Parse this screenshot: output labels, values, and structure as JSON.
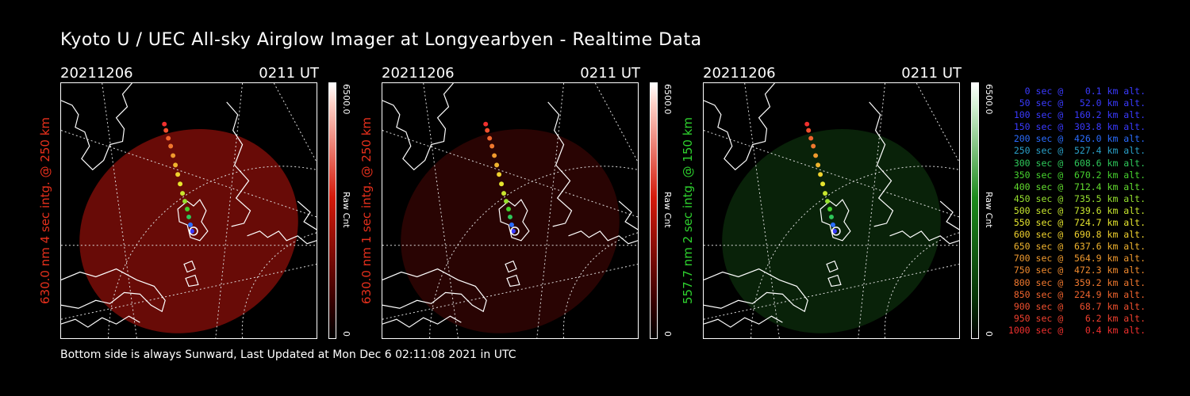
{
  "title": "Kyoto U / UEC All-sky Airglow Imager at Longyearbyen - Realtime Data",
  "footer": "Bottom side is always Sunward, Last Updated at Mon Dec  6 02:11:08 2021 in UTC",
  "panels": [
    {
      "date": "20211206",
      "time": "0211 UT",
      "label": "630.0 nm 4 sec intg. @ 250 km",
      "label_color": "#e8301c",
      "cbar_max": "6500.0",
      "cbar_unit": "Raw Cnt",
      "cbar_min": "0",
      "glow_color": "#7a0d08",
      "glow_opacity": 0.85,
      "cbar_color": "#d4190a"
    },
    {
      "date": "20211206",
      "time": "0211 UT",
      "label": "630.0 nm 1 sec intg. @ 250 km",
      "label_color": "#e8301c",
      "cbar_max": "6500.0",
      "cbar_unit": "Raw Cnt",
      "cbar_min": "0",
      "glow_color": "#3a0604",
      "glow_opacity": 0.7,
      "cbar_color": "#d4190a"
    },
    {
      "date": "20211206",
      "time": "0211 UT",
      "label": "557.7 nm 2 sec intg. @ 150 km",
      "label_color": "#2ed12e",
      "cbar_max": "6500.0",
      "cbar_unit": "Raw Cnt",
      "cbar_min": "0",
      "glow_color": "#0b2a0b",
      "glow_opacity": 0.8,
      "cbar_color": "#1c8a1c"
    }
  ],
  "legend": [
    {
      "text": "   0 sec @    0.1 km alt.",
      "color": "#3a3aff"
    },
    {
      "text": "  50 sec @   52.0 km alt.",
      "color": "#3a3aff"
    },
    {
      "text": " 100 sec @  160.2 km alt.",
      "color": "#3a3aff"
    },
    {
      "text": " 150 sec @  303.8 km alt.",
      "color": "#3a3aff"
    },
    {
      "text": " 200 sec @  426.0 km alt.",
      "color": "#2a6cff"
    },
    {
      "text": " 250 sec @  527.4 km alt.",
      "color": "#2aa0c8"
    },
    {
      "text": " 300 sec @  608.6 km alt.",
      "color": "#2ec85a"
    },
    {
      "text": " 350 sec @  670.2 km alt.",
      "color": "#46d22e"
    },
    {
      "text": " 400 sec @  712.4 km alt.",
      "color": "#62dc2e"
    },
    {
      "text": " 450 sec @  735.5 km alt.",
      "color": "#96e02e"
    },
    {
      "text": " 500 sec @  739.6 km alt.",
      "color": "#c8e62e"
    },
    {
      "text": " 550 sec @  724.7 km alt.",
      "color": "#e6e62e"
    },
    {
      "text": " 600 sec @  690.8 km alt.",
      "color": "#f0d22e"
    },
    {
      "text": " 650 sec @  637.6 km alt.",
      "color": "#f0b42e"
    },
    {
      "text": " 700 sec @  564.9 km alt.",
      "color": "#f09a2e"
    },
    {
      "text": " 750 sec @  472.3 km alt.",
      "color": "#f08a2e"
    },
    {
      "text": " 800 sec @  359.2 km alt.",
      "color": "#f0782e"
    },
    {
      "text": " 850 sec @  224.9 km alt.",
      "color": "#f0642e"
    },
    {
      "text": " 900 sec @   68.7 km alt.",
      "color": "#f0502e"
    },
    {
      "text": " 950 sec @    6.2 km alt.",
      "color": "#f0402e"
    },
    {
      "text": "1000 sec @    0.4 km alt.",
      "color": "#f0302e"
    }
  ]
}
